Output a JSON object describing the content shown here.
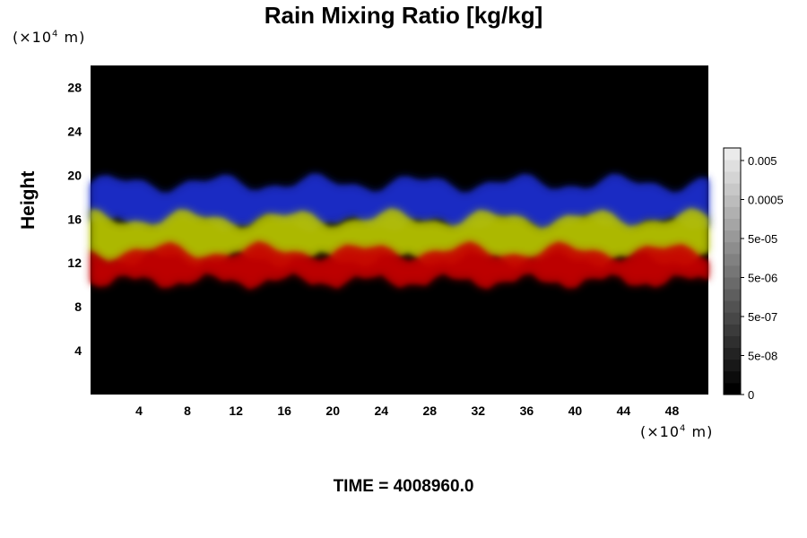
{
  "chart_data": {
    "type": "heatmap",
    "title": "Rain Mixing Ratio [kg/kg]",
    "ylabel": "Height",
    "xlabel": "",
    "y_unit": {
      "prefix": "(×10",
      "exp": "4",
      "suffix": " m)"
    },
    "x_unit": {
      "prefix": "(×10",
      "exp": "4",
      "suffix": " m)"
    },
    "xlim": [
      0,
      51
    ],
    "ylim": [
      0,
      30
    ],
    "x_ticks": [
      4,
      8,
      12,
      16,
      20,
      24,
      28,
      32,
      36,
      40,
      44,
      48
    ],
    "y_ticks": [
      4,
      8,
      12,
      16,
      20,
      24,
      28
    ],
    "grid": false,
    "colorbar": {
      "placement": "right",
      "tick_labels": [
        "0",
        "5e-08",
        "5e-07",
        "5e-06",
        "5e-05",
        "0.0005",
        "0.005"
      ],
      "levels": 21
    },
    "layers": [
      {
        "color": "#1a2ed0",
        "y_range": [
          15.6,
          19.2
        ]
      },
      {
        "color": "#b8c400",
        "y_range": [
          12.4,
          16.0
        ]
      },
      {
        "color": "#c80000",
        "y_range": [
          10.4,
          13.0
        ]
      }
    ]
  },
  "footer": {
    "time_label": "TIME = 4008960.0"
  }
}
